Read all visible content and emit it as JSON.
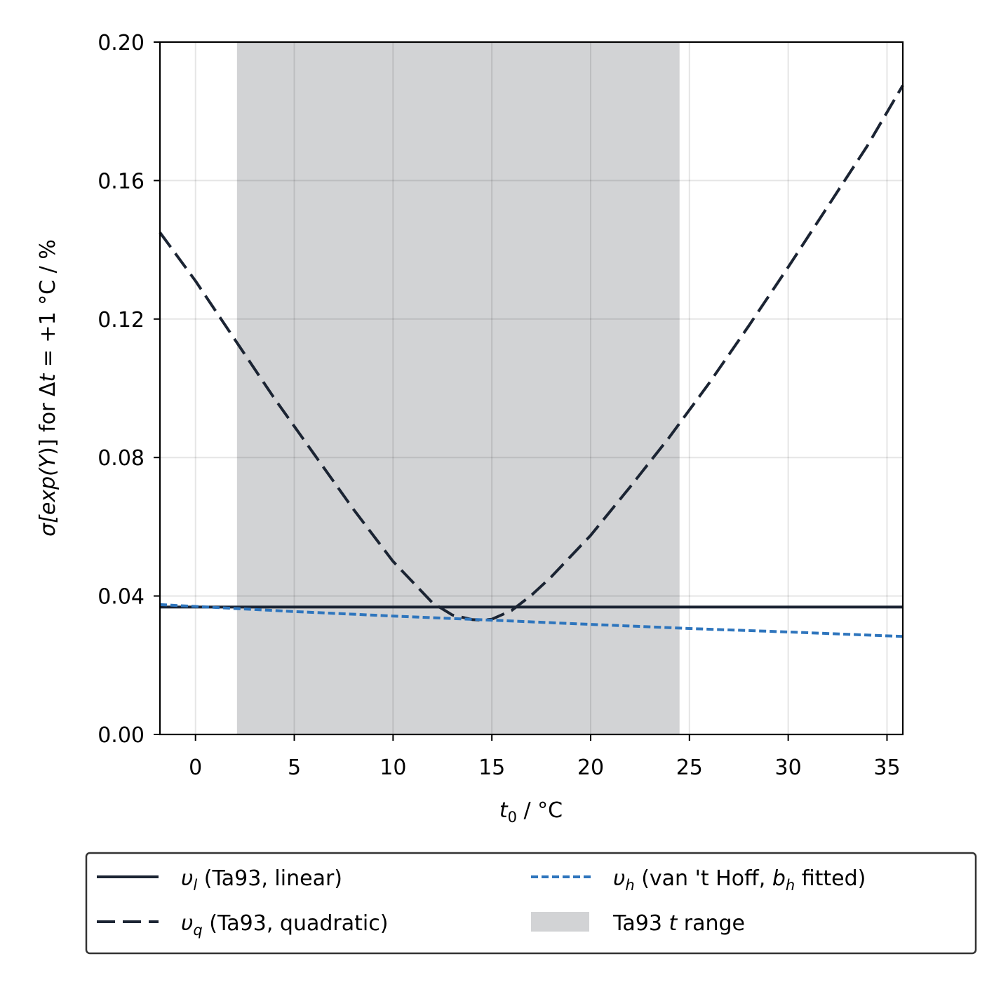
{
  "chart_data": {
    "type": "line",
    "xlabel": "t0 / °C",
    "ylabel": "σ[exp(Y)] for Δt = +1 °C / %",
    "xlim": [
      -1.8,
      35.8
    ],
    "ylim": [
      0.0,
      0.2
    ],
    "x_ticks": [
      "0",
      "5",
      "10",
      "15",
      "20",
      "25",
      "30",
      "35"
    ],
    "y_ticks": [
      "0.00",
      "0.04",
      "0.08",
      "0.12",
      "0.16",
      "0.20"
    ],
    "grid": true,
    "legend_position": "below",
    "colors": {
      "dark": "#1b2433",
      "blue": "#2e75bd",
      "shade": "#d2d3d5",
      "grid": "#e4e4e4"
    },
    "shaded_range": {
      "name": "Ta93 t range",
      "x": [
        2.1,
        24.5
      ]
    },
    "series": [
      {
        "name": "υl (Ta93, linear)",
        "style": "solid",
        "x": [
          -1.8,
          35.8
        ],
        "y": [
          0.0368,
          0.0368
        ]
      },
      {
        "name": "υq (Ta93, quadratic)",
        "style": "dashed",
        "x": [
          -1.8,
          0,
          2,
          4,
          6,
          8,
          10,
          12,
          13,
          14,
          14.5,
          15,
          16,
          17,
          18,
          20,
          22,
          24,
          26,
          28,
          30,
          32,
          34,
          35.8
        ],
        "y": [
          0.145,
          0.131,
          0.114,
          0.097,
          0.081,
          0.065,
          0.05,
          0.038,
          0.0345,
          0.0332,
          0.033,
          0.0333,
          0.0358,
          0.0402,
          0.0455,
          0.0575,
          0.0715,
          0.086,
          0.1015,
          0.118,
          0.135,
          0.1525,
          0.17,
          0.1875
        ]
      },
      {
        "name": "υh (van 't Hoff, bh fitted)",
        "style": "dotted",
        "x": [
          -1.8,
          5,
          10,
          15,
          20,
          25,
          30,
          35.8
        ],
        "y": [
          0.0375,
          0.0355,
          0.0342,
          0.033,
          0.0318,
          0.0306,
          0.0296,
          0.0283
        ]
      }
    ]
  },
  "legend": {
    "linear_sym": "υ",
    "linear_sub": "l",
    "linear_rest": " (Ta93, linear)",
    "quad_sym": "υ",
    "quad_sub": "q",
    "quad_rest": " (Ta93, quadratic)",
    "hoff_sym": "υ",
    "hoff_sub": "h",
    "hoff_rest1": " (van 't Hoff, ",
    "hoff_b": "b",
    "hoff_bsub": "h",
    "hoff_rest2": " fitted)",
    "range_pre": "Ta93 ",
    "range_t": "t",
    "range_post": " range"
  },
  "axes_text": {
    "xlabel_t": "t",
    "xlabel_sub": "0",
    "xlabel_rest": " / °C",
    "ylabel_pre": "σ[exp(",
    "ylabel_Y": "Y",
    "ylabel_mid": ")] for Δ",
    "ylabel_t": "t",
    "ylabel_post": " = +1 °C / %"
  }
}
